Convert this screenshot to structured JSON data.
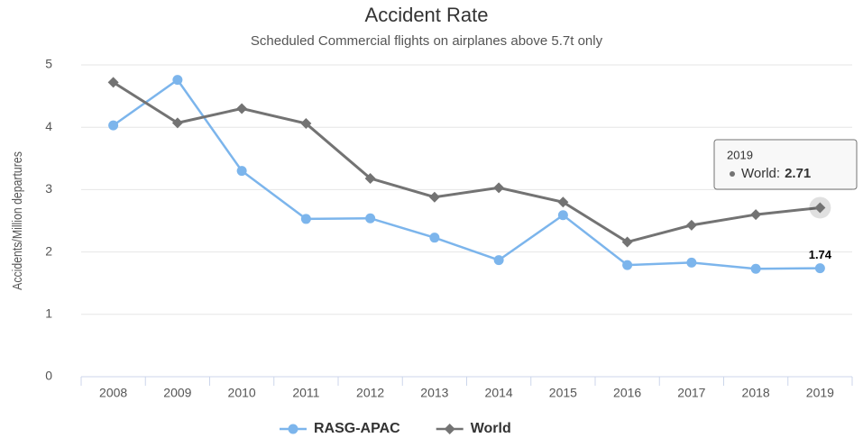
{
  "chart_data": {
    "type": "line",
    "title": "Accident Rate",
    "subtitle": "Scheduled Commercial flights on airplanes above 5.7t only",
    "y_label": "Accidents/Million departures",
    "categories": [
      "2008",
      "2009",
      "2010",
      "2011",
      "2012",
      "2013",
      "2014",
      "2015",
      "2016",
      "2017",
      "2018",
      "2019"
    ],
    "series": [
      {
        "name": "RASG-APAC",
        "color": "#7cb5ec",
        "marker": "circle",
        "values": [
          4.03,
          4.76,
          3.3,
          2.53,
          2.54,
          2.23,
          1.87,
          2.59,
          1.79,
          1.83,
          1.73,
          1.74
        ]
      },
      {
        "name": "World",
        "color": "#737373",
        "marker": "diamond",
        "values": [
          4.72,
          4.07,
          4.3,
          4.06,
          3.18,
          2.88,
          3.03,
          2.8,
          2.16,
          2.43,
          2.6,
          2.71
        ]
      }
    ],
    "ylim": [
      0,
      5
    ],
    "yticks": [
      0,
      1,
      2,
      3,
      4,
      5
    ],
    "grid": true,
    "legend": "bottom",
    "tooltip": {
      "label": "World:"
    }
  }
}
